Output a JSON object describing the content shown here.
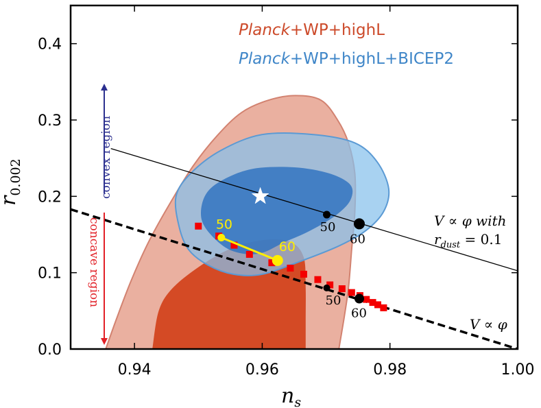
{
  "chart_data": {
    "type": "scatter",
    "xlabel": "n",
    "xlabel_sub": "s",
    "ylabel": "r",
    "ylabel_sub": "0.002",
    "xlim": [
      0.93,
      1.0
    ],
    "ylim": [
      0.0,
      0.45
    ],
    "x_ticks": [
      0.94,
      0.96,
      0.98,
      1.0
    ],
    "x_tick_labels": [
      "0.94",
      "0.96",
      "0.98",
      "1.00"
    ],
    "y_ticks": [
      0.0,
      0.1,
      0.2,
      0.3,
      0.4
    ],
    "y_tick_labels": [
      "0.0",
      "0.1",
      "0.2",
      "0.3",
      "0.4"
    ],
    "legend": [
      {
        "italic": "Planck",
        "rest": "+WP+highL",
        "color": "#cc4a2a"
      },
      {
        "italic": "Planck",
        "rest": "+WP+highL+BICEP2",
        "color": "#3f86c8"
      }
    ],
    "contours": {
      "planck_outer": [
        [
          0.9355,
          0.0
        ],
        [
          0.9372,
          0.04
        ],
        [
          0.9395,
          0.09
        ],
        [
          0.9422,
          0.14
        ],
        [
          0.9455,
          0.19
        ],
        [
          0.9492,
          0.24
        ],
        [
          0.953,
          0.28
        ],
        [
          0.9568,
          0.31
        ],
        [
          0.961,
          0.326
        ],
        [
          0.9652,
          0.332
        ],
        [
          0.9692,
          0.326
        ],
        [
          0.9718,
          0.3
        ],
        [
          0.9735,
          0.27
        ],
        [
          0.9745,
          0.23
        ],
        [
          0.9745,
          0.18
        ],
        [
          0.974,
          0.13
        ],
        [
          0.9735,
          0.08
        ],
        [
          0.9728,
          0.04
        ],
        [
          0.972,
          0.0
        ]
      ],
      "planck_inner": [
        [
          0.9428,
          0.0
        ],
        [
          0.9438,
          0.05
        ],
        [
          0.946,
          0.08
        ],
        [
          0.9505,
          0.11
        ],
        [
          0.9555,
          0.133
        ],
        [
          0.9605,
          0.143
        ],
        [
          0.9645,
          0.14
        ],
        [
          0.9665,
          0.12
        ],
        [
          0.9668,
          0.08
        ],
        [
          0.9668,
          0.04
        ],
        [
          0.9668,
          0.0
        ]
      ],
      "bicep_outer": [
        [
          0.947,
          0.16
        ],
        [
          0.9465,
          0.2
        ],
        [
          0.9488,
          0.23
        ],
        [
          0.9535,
          0.26
        ],
        [
          0.96,
          0.281
        ],
        [
          0.968,
          0.281
        ],
        [
          0.9745,
          0.27
        ],
        [
          0.978,
          0.245
        ],
        [
          0.9798,
          0.21
        ],
        [
          0.979,
          0.18
        ],
        [
          0.9762,
          0.155
        ],
        [
          0.972,
          0.135
        ],
        [
          0.966,
          0.115
        ],
        [
          0.96,
          0.098
        ],
        [
          0.9555,
          0.098
        ],
        [
          0.9515,
          0.11
        ],
        [
          0.9485,
          0.13
        ]
      ],
      "bicep_inner": [
        [
          0.9505,
          0.17
        ],
        [
          0.951,
          0.2
        ],
        [
          0.9535,
          0.22
        ],
        [
          0.9585,
          0.236
        ],
        [
          0.965,
          0.238
        ],
        [
          0.9705,
          0.23
        ],
        [
          0.9738,
          0.215
        ],
        [
          0.9738,
          0.195
        ],
        [
          0.9715,
          0.175
        ],
        [
          0.9675,
          0.155
        ],
        [
          0.9635,
          0.14
        ],
        [
          0.9595,
          0.125
        ],
        [
          0.9555,
          0.128
        ],
        [
          0.9525,
          0.145
        ]
      ]
    },
    "best_fit_star": {
      "x": 0.9597,
      "y": 0.2
    },
    "line_with_dust": {
      "label": "V ∝ φ with",
      "label2": "r",
      "label2_sub": "dust",
      "label2_rest": " = 0.1",
      "from": [
        0.9363,
        0.2626
      ],
      "to": [
        1.0,
        0.1025
      ]
    },
    "line_dashed": {
      "label": "V ∝ φ",
      "from": [
        0.93,
        0.183
      ],
      "to": [
        1.0,
        0.0
      ]
    },
    "yellow_points": [
      {
        "x": 0.9536,
        "y": 0.146,
        "label": "50"
      },
      {
        "x": 0.9624,
        "y": 0.116,
        "label": "60"
      }
    ],
    "black_points_upper": [
      {
        "x": 0.9701,
        "y": 0.176,
        "label": "50"
      },
      {
        "x": 0.9752,
        "y": 0.164,
        "label": "60"
      }
    ],
    "black_points_lower": [
      {
        "x": 0.9701,
        "y": 0.08,
        "label": "50"
      },
      {
        "x": 0.9752,
        "y": 0.066,
        "label": "60"
      }
    ],
    "red_squares": [
      [
        0.95,
        0.161
      ],
      [
        0.9532,
        0.148
      ],
      [
        0.9556,
        0.136
      ],
      [
        0.958,
        0.124
      ],
      [
        0.9615,
        0.113
      ],
      [
        0.9644,
        0.106
      ],
      [
        0.9665,
        0.098
      ],
      [
        0.9687,
        0.091
      ],
      [
        0.9706,
        0.084
      ],
      [
        0.9725,
        0.079
      ],
      [
        0.974,
        0.074
      ],
      [
        0.9753,
        0.07
      ],
      [
        0.9763,
        0.065
      ],
      [
        0.9773,
        0.061
      ],
      [
        0.9781,
        0.058
      ],
      [
        0.979,
        0.054
      ]
    ],
    "annotations": {
      "convex": "convex region",
      "concave": "concave region"
    }
  }
}
